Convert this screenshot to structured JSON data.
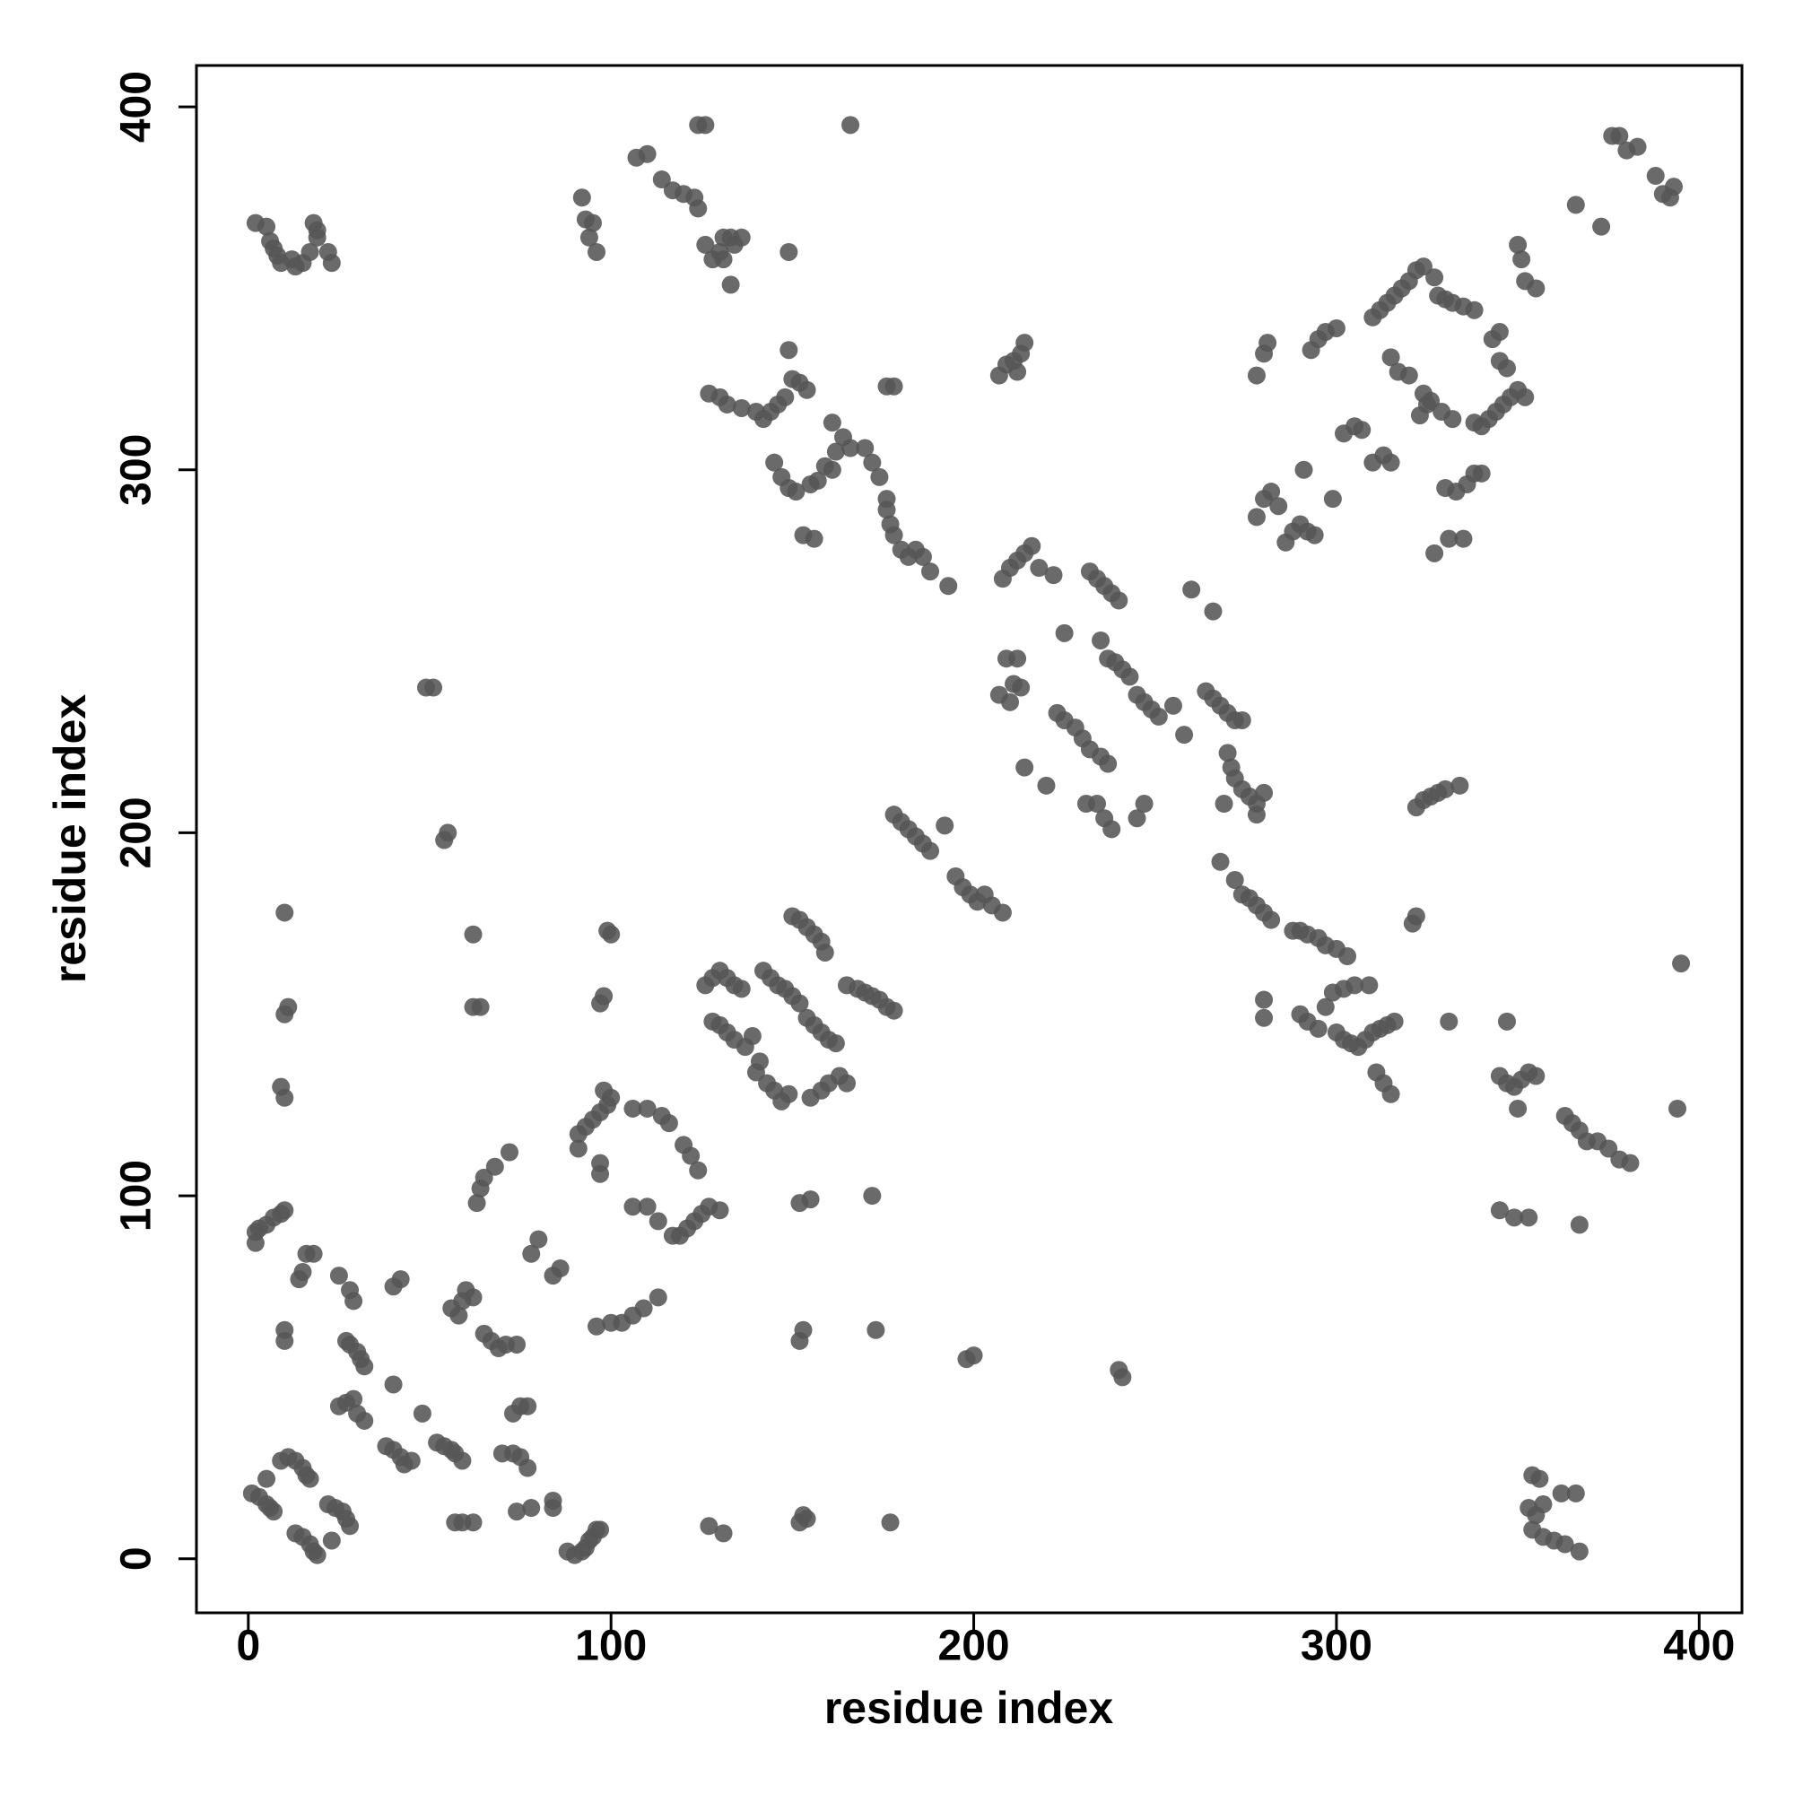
{
  "chart_data": {
    "type": "scatter",
    "xlabel": "residue index",
    "ylabel": "residue index",
    "color": "#555555",
    "xlim": [
      -14.3,
      411.8
    ],
    "ylim": [
      -14.9,
      411.4
    ],
    "xticks": [
      0,
      100,
      200,
      300,
      400
    ],
    "yticks": [
      0,
      100,
      200,
      300,
      400
    ],
    "x": [
      1,
      3,
      5,
      6,
      7,
      5,
      9,
      11,
      13,
      15,
      16,
      17,
      13,
      15,
      17,
      18,
      19,
      22,
      24,
      26,
      27,
      28,
      23,
      2,
      3,
      5,
      7,
      9,
      10,
      2,
      10,
      10,
      14,
      15,
      16,
      18,
      25,
      28,
      29,
      27,
      28,
      30,
      31,
      32,
      25,
      27,
      29,
      30,
      32,
      38,
      40,
      42,
      43,
      45,
      40,
      48,
      40,
      42,
      52,
      54,
      56,
      57,
      59,
      56,
      58,
      59,
      60,
      62,
      57,
      59,
      62,
      65,
      67,
      69,
      71,
      74,
      70,
      73,
      75,
      77,
      73,
      75,
      77,
      74,
      78,
      84,
      84,
      63,
      64,
      65,
      68,
      72,
      78,
      80,
      84,
      86,
      88,
      90,
      92,
      93,
      94,
      95,
      96,
      97,
      96,
      100,
      103,
      106,
      109,
      113,
      91,
      93,
      95,
      97,
      99,
      100,
      98,
      91,
      97,
      97,
      106,
      110,
      113,
      117,
      119,
      121,
      123,
      125,
      127,
      130,
      106,
      110,
      114,
      116,
      120,
      122,
      124,
      126,
      128,
      130,
      132,
      134,
      136,
      128,
      130,
      132,
      134,
      137,
      139,
      127,
      131,
      152,
      154,
      153,
      152,
      155,
      152,
      153,
      140,
      143,
      145,
      147,
      149,
      141,
      142,
      144,
      146,
      148,
      150,
      152,
      150,
      152,
      154,
      156,
      158,
      159,
      154,
      156,
      158,
      160,
      162,
      155,
      158,
      160,
      163,
      165,
      165,
      168,
      170,
      172,
      174,
      176,
      178,
      172,
      173,
      177,
      178,
      180,
      182,
      184,
      186,
      188,
      192,
      195,
      197,
      199,
      201,
      203,
      205,
      208,
      198,
      200,
      240,
      241,
      207,
      210,
      211,
      213,
      209,
      212,
      208,
      210,
      212,
      214,
      216,
      218,
      222,
      225,
      223,
      225,
      228,
      230,
      232,
      235,
      237,
      214,
      220,
      231,
      234,
      236,
      238,
      245,
      247,
      232,
      234,
      236,
      238,
      240,
      235,
      237,
      239,
      241,
      243,
      245,
      247,
      249,
      251,
      255,
      258,
      260,
      266,
      264,
      266,
      268,
      270,
      272,
      274,
      270,
      271,
      272,
      274,
      276,
      278,
      280,
      269,
      278,
      268,
      272,
      274,
      276,
      278,
      280,
      282,
      280,
      280,
      288,
      290,
      292,
      295,
      297,
      300,
      303,
      290,
      292,
      295,
      297,
      299,
      302,
      305,
      300,
      302,
      304,
      306,
      308,
      310,
      312,
      314,
      316,
      309,
      311,
      313,
      315,
      321,
      322,
      331,
      322,
      324,
      326,
      328,
      330,
      334,
      345,
      347,
      349,
      351,
      353,
      355,
      350,
      347,
      345,
      349,
      353,
      367,
      363,
      365,
      367,
      369,
      372,
      375,
      378,
      381,
      394,
      395,
      354,
      356,
      353,
      355,
      357,
      354,
      357,
      360,
      363,
      367,
      362,
      366,
      2,
      5,
      6,
      7,
      8,
      9,
      12,
      13,
      15,
      17,
      18,
      19,
      19,
      22,
      23,
      9,
      10,
      10,
      11,
      10,
      49,
      51,
      54,
      55,
      62,
      62,
      64,
      92,
      93,
      95,
      94,
      96,
      98,
      97,
      99,
      100,
      107,
      110,
      114,
      117,
      120,
      123,
      124,
      124,
      126,
      126,
      128,
      130,
      131,
      133,
      134,
      136,
      133,
      131,
      149,
      150,
      152,
      154,
      148,
      146,
      144,
      142,
      140,
      127,
      130,
      132,
      136,
      145,
      147,
      149,
      151,
      153,
      156,
      155,
      157,
      159,
      161,
      162,
      161,
      164,
      166,
      149,
      166,
      170,
      172,
      174,
      176,
      176,
      177,
      178,
      176,
      178,
      180,
      182,
      184,
      186,
      188,
      193,
      207,
      209,
      211,
      213,
      214,
      212,
      278,
      280,
      281,
      278,
      280,
      282,
      284,
      286,
      288,
      290,
      292,
      294,
      291,
      299,
      293,
      295,
      297,
      300,
      302,
      305,
      307,
      310,
      313,
      315,
      310,
      312,
      314,
      316,
      318,
      320,
      322,
      324,
      327,
      315,
      317,
      320,
      324,
      323,
      325,
      328,
      330,
      332,
      335,
      338,
      326,
      329,
      332,
      338,
      330,
      333,
      336,
      338,
      340,
      327,
      331,
      335,
      340,
      342,
      344,
      346,
      348,
      350,
      352,
      345,
      347,
      343,
      345,
      350,
      351,
      352,
      355,
      366,
      373,
      376,
      378,
      380,
      383,
      388,
      390,
      392,
      393
    ],
    "y": [
      18,
      17,
      15,
      14,
      13,
      22,
      27,
      28,
      27,
      25,
      23,
      22,
      7,
      6,
      4,
      2,
      1,
      15,
      14,
      13,
      11,
      9,
      5,
      90,
      91,
      92,
      94,
      95,
      96,
      87,
      60,
      63,
      77,
      79,
      84,
      84,
      78,
      74,
      71,
      60,
      59,
      57,
      55,
      53,
      42,
      43,
      44,
      40,
      38,
      31,
      30,
      28,
      26,
      27,
      48,
      40,
      75,
      77,
      32,
      31,
      30,
      29,
      27,
      69,
      67,
      71,
      74,
      72,
      10,
      10,
      10,
      62,
      60,
      58,
      59,
      59,
      29,
      29,
      28,
      25,
      40,
      42,
      42,
      13,
      14,
      16,
      14,
      98,
      102,
      105,
      108,
      112,
      84,
      88,
      78,
      80,
      2,
      1,
      2,
      3,
      5,
      6,
      8,
      8,
      64,
      65,
      65,
      67,
      69,
      72,
      117,
      119,
      121,
      123,
      125,
      127,
      129,
      113,
      106,
      109,
      97,
      97,
      93,
      89,
      89,
      91,
      93,
      95,
      97,
      96,
      124,
      124,
      122,
      120,
      114,
      111,
      107,
      158,
      160,
      162,
      160,
      158,
      157,
      148,
      147,
      145,
      143,
      141,
      144,
      9,
      7,
      10,
      11,
      12,
      98,
      99,
      60,
      63,
      134,
      131,
      129,
      126,
      128,
      137,
      162,
      160,
      158,
      157,
      155,
      153,
      177,
      176,
      174,
      172,
      170,
      167,
      149,
      147,
      145,
      143,
      142,
      127,
      129,
      131,
      133,
      131,
      158,
      157,
      156,
      155,
      154,
      152,
      151,
      100,
      63,
      10,
      205,
      203,
      201,
      199,
      197,
      195,
      202,
      188,
      185,
      183,
      181,
      183,
      180,
      178,
      55,
      56,
      52,
      50,
      238,
      236,
      241,
      240,
      248,
      248,
      270,
      273,
      275,
      277,
      279,
      273,
      271,
      255,
      233,
      231,
      229,
      226,
      223,
      221,
      219,
      218,
      213,
      208,
      208,
      204,
      201,
      204,
      208,
      272,
      270,
      268,
      266,
      264,
      253,
      248,
      247,
      245,
      243,
      238,
      236,
      234,
      232,
      235,
      227,
      267,
      261,
      239,
      237,
      235,
      233,
      231,
      231,
      222,
      218,
      215,
      212,
      210,
      208,
      211,
      208,
      205,
      192,
      187,
      183,
      182,
      180,
      178,
      176,
      154,
      149,
      173,
      173,
      172,
      171,
      169,
      168,
      166,
      150,
      148,
      146,
      152,
      156,
      157,
      158,
      145,
      143,
      142,
      141,
      143,
      145,
      146,
      147,
      148,
      158,
      134,
      131,
      128,
      175,
      177,
      148,
      207,
      209,
      210,
      211,
      212,
      213,
      133,
      131,
      130,
      132,
      134,
      133,
      124,
      148,
      96,
      94,
      94,
      92,
      122,
      120,
      118,
      115,
      115,
      113,
      110,
      109,
      124,
      164,
      23,
      22,
      14,
      12,
      15,
      8,
      6,
      5,
      4,
      2,
      18,
      18,
      368,
      367,
      363,
      361,
      359,
      357,
      358,
      356,
      357,
      360,
      368,
      366,
      364,
      360,
      357,
      130,
      127,
      178,
      152,
      150,
      240,
      240,
      198,
      200,
      172,
      152,
      152,
      375,
      369,
      368,
      364,
      360,
      155,
      153,
      173,
      172,
      386,
      387,
      380,
      377,
      376,
      375,
      372,
      395,
      395,
      362,
      358,
      360,
      364,
      364,
      362,
      364,
      351,
      358,
      333,
      325,
      324,
      322,
      320,
      318,
      316,
      314,
      316,
      321,
      320,
      318,
      317,
      302,
      298,
      295,
      294,
      282,
      281,
      296,
      297,
      301,
      300,
      305,
      313,
      309,
      395,
      360,
      306,
      306,
      302,
      298,
      292,
      289,
      285,
      282,
      323,
      323,
      278,
      276,
      278,
      276,
      272,
      268,
      326,
      329,
      330,
      332,
      335,
      327,
      326,
      332,
      335,
      287,
      292,
      294,
      290,
      280,
      283,
      285,
      283,
      282,
      300,
      292,
      333,
      336,
      338,
      339,
      310,
      312,
      311,
      302,
      304,
      302,
      342,
      344,
      346,
      348,
      350,
      352,
      355,
      356,
      353,
      331,
      327,
      326,
      321,
      315,
      318,
      348,
      347,
      346,
      345,
      344,
      319,
      316,
      314,
      313,
      295,
      294,
      296,
      299,
      299,
      277,
      281,
      281,
      312,
      314,
      316,
      318,
      320,
      322,
      320,
      330,
      328,
      336,
      338,
      362,
      358,
      352,
      350,
      373,
      367,
      392,
      392,
      388,
      389,
      381,
      376,
      375,
      378
    ]
  }
}
